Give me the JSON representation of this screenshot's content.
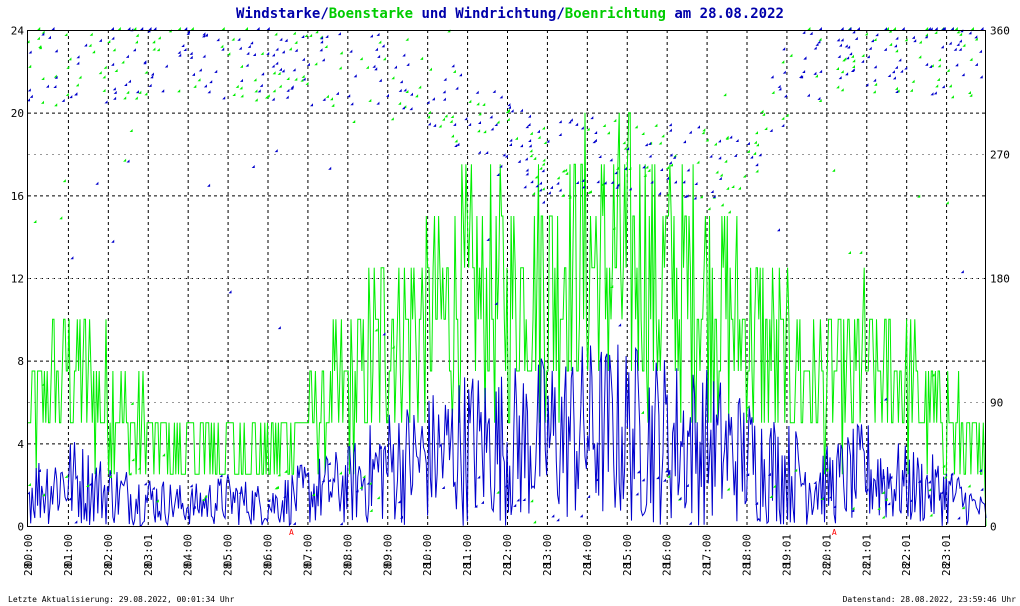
{
  "title": {
    "part1": "Windstarke",
    "slash1": "/",
    "part2": "Boenstarke",
    "mid": " und ",
    "part3": "Windrichtung",
    "slash2": "/",
    "part4": "Boenrichtung",
    "end": " am 28.08.2022"
  },
  "footer": {
    "left": "Letzte Aktualisierung: 29.08.2022, 00:01:34 Uhr",
    "right": "Datenstand: 28.08.2022, 23:59:46 Uhr"
  },
  "colors": {
    "wind": "#0000cc",
    "gust": "#00ee00",
    "title_blue": "#0000aa",
    "title_green": "#00cc00",
    "marker": "#ff0000"
  },
  "chart_data": {
    "type": "line",
    "y_left": {
      "ticks": [
        "0",
        "4",
        "8",
        "12",
        "16",
        "20",
        "24"
      ],
      "range": [
        0,
        24
      ]
    },
    "y_right": {
      "ticks": [
        "0",
        "90",
        "180",
        "270",
        "360"
      ],
      "range": [
        0,
        360
      ]
    },
    "x": {
      "date_label": "28.",
      "time_labels": [
        "00:00",
        "01:00",
        "02:00",
        "03:01",
        "04:00",
        "05:00",
        "06:00",
        "07:00",
        "08:00",
        "09:00",
        "10:00",
        "11:00",
        "12:00",
        "13:00",
        "14:00",
        "15:00",
        "16:00",
        "17:00",
        "18:00",
        "19:01",
        "20:01",
        "21:01",
        "22:01",
        "23:01"
      ],
      "marker_labels": [
        "A",
        "A"
      ]
    },
    "grid": true,
    "series": [
      {
        "key": "wind_speed",
        "envelope": [
          [
            0,
            2.5
          ],
          [
            1,
            3.5
          ],
          [
            2,
            2.5
          ],
          [
            3,
            2
          ],
          [
            4,
            1.5
          ],
          [
            5,
            2
          ],
          [
            6,
            1.5
          ],
          [
            7,
            2.5
          ],
          [
            8,
            3
          ],
          [
            9,
            4.5
          ],
          [
            10,
            5
          ],
          [
            11,
            6
          ],
          [
            12,
            6
          ],
          [
            13,
            6.5
          ],
          [
            14,
            7
          ],
          [
            15,
            7
          ],
          [
            16,
            6.5
          ],
          [
            17,
            6
          ],
          [
            18,
            5
          ],
          [
            19,
            4
          ],
          [
            20,
            3
          ],
          [
            21,
            4
          ],
          [
            22,
            3
          ],
          [
            23,
            2.5
          ],
          [
            24,
            1
          ]
        ]
      },
      {
        "key": "gust_speed",
        "envelope": [
          [
            0,
            6
          ],
          [
            1,
            9
          ],
          [
            2,
            7
          ],
          [
            3,
            5
          ],
          [
            4,
            4
          ],
          [
            5,
            4.5
          ],
          [
            6,
            4
          ],
          [
            7,
            6
          ],
          [
            8,
            7.5
          ],
          [
            9,
            11
          ],
          [
            10,
            12
          ],
          [
            11,
            13
          ],
          [
            12,
            13
          ],
          [
            13,
            14
          ],
          [
            14,
            15
          ],
          [
            15,
            15
          ],
          [
            16,
            14
          ],
          [
            17,
            13
          ],
          [
            18,
            11
          ],
          [
            19,
            9
          ],
          [
            20,
            8
          ],
          [
            21,
            9
          ],
          [
            22,
            8
          ],
          [
            23,
            6
          ],
          [
            24,
            3
          ]
        ]
      },
      {
        "key": "wind_direction_deg",
        "clusters": [
          [
            0,
            330
          ],
          [
            2,
            335
          ],
          [
            4,
            340
          ],
          [
            6,
            335
          ],
          [
            8,
            330
          ],
          [
            10,
            320
          ],
          [
            11,
            300
          ],
          [
            12,
            280
          ],
          [
            13,
            260
          ],
          [
            14,
            270
          ],
          [
            15,
            270
          ],
          [
            16,
            265
          ],
          [
            17,
            260
          ],
          [
            18,
            250
          ],
          [
            19,
            320
          ],
          [
            20,
            340
          ],
          [
            21,
            340
          ],
          [
            22,
            345
          ],
          [
            23,
            340
          ]
        ]
      }
    ]
  }
}
